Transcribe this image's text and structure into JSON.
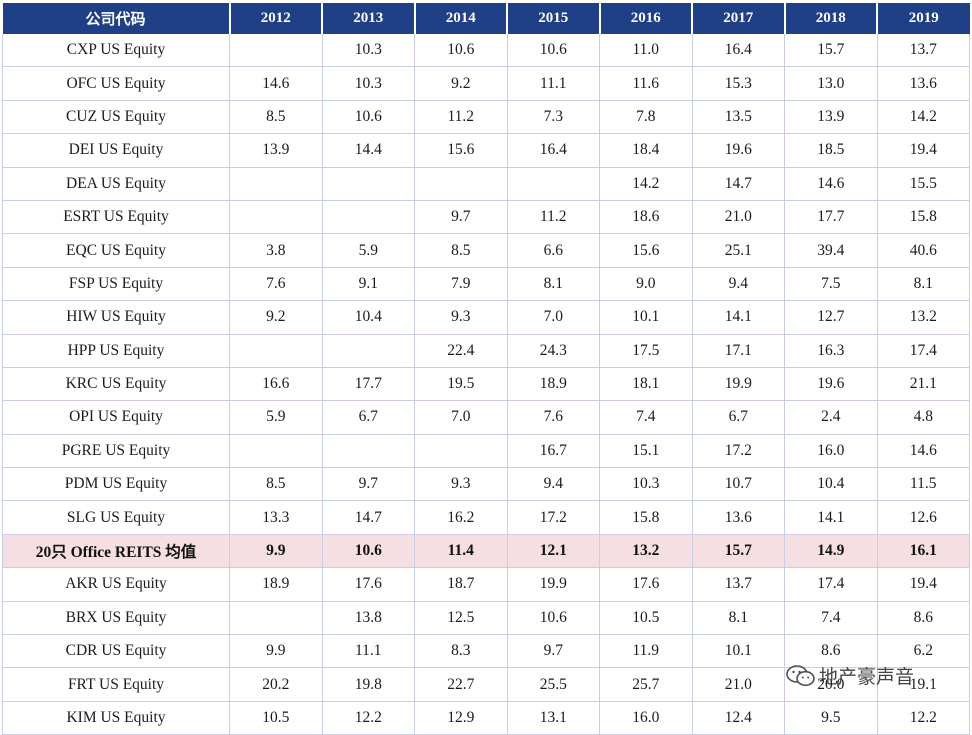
{
  "header": {
    "company_code": "公司代码",
    "years": [
      "2012",
      "2013",
      "2014",
      "2015",
      "2016",
      "2017",
      "2018",
      "2019"
    ]
  },
  "rows": [
    {
      "name": "CXP US Equity",
      "values": [
        "",
        "10.3",
        "10.6",
        "10.6",
        "11.0",
        "16.4",
        "15.7",
        "13.7"
      ]
    },
    {
      "name": "OFC US Equity",
      "values": [
        "14.6",
        "10.3",
        "9.2",
        "11.1",
        "11.6",
        "15.3",
        "13.0",
        "13.6"
      ]
    },
    {
      "name": "CUZ US Equity",
      "values": [
        "8.5",
        "10.6",
        "11.2",
        "7.3",
        "7.8",
        "13.5",
        "13.9",
        "14.2"
      ]
    },
    {
      "name": "DEI US Equity",
      "values": [
        "13.9",
        "14.4",
        "15.6",
        "16.4",
        "18.4",
        "19.6",
        "18.5",
        "19.4"
      ]
    },
    {
      "name": "DEA US Equity",
      "values": [
        "",
        "",
        "",
        "",
        "14.2",
        "14.7",
        "14.6",
        "15.5"
      ]
    },
    {
      "name": "ESRT US Equity",
      "values": [
        "",
        "",
        "9.7",
        "11.2",
        "18.6",
        "21.0",
        "17.7",
        "15.8"
      ]
    },
    {
      "name": "EQC US Equity",
      "values": [
        "3.8",
        "5.9",
        "8.5",
        "6.6",
        "15.6",
        "25.1",
        "39.4",
        "40.6"
      ]
    },
    {
      "name": "FSP US Equity",
      "values": [
        "7.6",
        "9.1",
        "7.9",
        "8.1",
        "9.0",
        "9.4",
        "7.5",
        "8.1"
      ]
    },
    {
      "name": "HIW US Equity",
      "values": [
        "9.2",
        "10.4",
        "9.3",
        "7.0",
        "10.1",
        "14.1",
        "12.7",
        "13.2"
      ]
    },
    {
      "name": "HPP US Equity",
      "values": [
        "",
        "",
        "22.4",
        "24.3",
        "17.5",
        "17.1",
        "16.3",
        "17.4"
      ]
    },
    {
      "name": "KRC US Equity",
      "values": [
        "16.6",
        "17.7",
        "19.5",
        "18.9",
        "18.1",
        "19.9",
        "19.6",
        "21.1"
      ]
    },
    {
      "name": "OPI US Equity",
      "values": [
        "5.9",
        "6.7",
        "7.0",
        "7.6",
        "7.4",
        "6.7",
        "2.4",
        "4.8"
      ]
    },
    {
      "name": "PGRE US Equity",
      "values": [
        "",
        "",
        "",
        "16.7",
        "15.1",
        "17.2",
        "16.0",
        "14.6"
      ]
    },
    {
      "name": "PDM US Equity",
      "values": [
        "8.5",
        "9.7",
        "9.3",
        "9.4",
        "10.3",
        "10.7",
        "10.4",
        "11.5"
      ]
    },
    {
      "name": "SLG US Equity",
      "values": [
        "13.3",
        "14.7",
        "16.2",
        "17.2",
        "15.8",
        "13.6",
        "14.1",
        "12.6"
      ]
    },
    {
      "name": "20只 Office REITS 均值",
      "values": [
        "9.9",
        "10.6",
        "11.4",
        "12.1",
        "13.2",
        "15.7",
        "14.9",
        "16.1"
      ],
      "highlight": true
    },
    {
      "name": "AKR US Equity",
      "values": [
        "18.9",
        "17.6",
        "18.7",
        "19.9",
        "17.6",
        "13.7",
        "17.4",
        "19.4"
      ]
    },
    {
      "name": "BRX US Equity",
      "values": [
        "",
        "13.8",
        "12.5",
        "10.6",
        "10.5",
        "8.1",
        "7.4",
        "8.6"
      ]
    },
    {
      "name": "CDR US Equity",
      "values": [
        "9.9",
        "11.1",
        "8.3",
        "9.7",
        "11.9",
        "10.1",
        "8.6",
        "6.2"
      ]
    },
    {
      "name": "FRT US Equity",
      "values": [
        "20.2",
        "19.8",
        "22.7",
        "25.5",
        "25.7",
        "21.0",
        "20.0",
        "19.1"
      ]
    },
    {
      "name": "KIM US Equity",
      "values": [
        "10.5",
        "12.2",
        "12.9",
        "13.1",
        "16.0",
        "12.4",
        "9.5",
        "12.2"
      ]
    }
  ],
  "watermark": {
    "text": "地产豪声音",
    "icon": "wechat-icon"
  },
  "colors": {
    "header_bg": "#1f3f87",
    "highlight_row_bg": "#f6dfe3",
    "grid": "#c9cfe2"
  }
}
